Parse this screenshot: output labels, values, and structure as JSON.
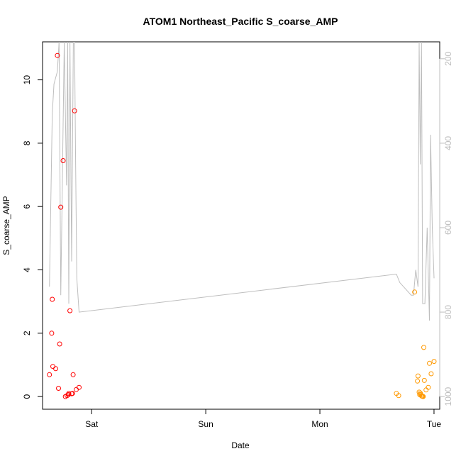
{
  "chart_data": {
    "type": "scatter",
    "title": "ATOM1 Northeast_Pacific S_coarse_AMP",
    "xlabel": "Date",
    "ylabel": "S_coarse_AMP",
    "x_ticks": [
      "Sat",
      "Sun",
      "Mon",
      "Tue"
    ],
    "x_tick_positions_days": [
      1,
      2,
      3,
      4
    ],
    "xlim_days": [
      0.57,
      4.05
    ],
    "ylim": [
      -0.4,
      11.2
    ],
    "y_ticks": [
      0,
      2,
      4,
      6,
      8,
      10
    ],
    "y2_ticks": [
      200,
      400,
      600,
      800,
      1000
    ],
    "y2lim": [
      1030,
      160
    ],
    "y2_reversed": true,
    "grid": false,
    "legend": "none",
    "colors": {
      "series1": "#ff0000",
      "series2": "#ff9900",
      "line": "#bebebe",
      "axis": "#000000",
      "axis2": "#bdbdbd"
    },
    "series": [
      {
        "color": "#ff0000",
        "marker": "open-circle",
        "x": [
          0.63,
          0.655,
          0.65,
          0.66,
          0.685,
          0.7,
          0.71,
          0.72,
          0.73,
          0.75,
          0.77,
          0.785,
          0.795,
          0.8,
          0.81,
          0.825,
          0.832,
          0.838,
          0.85,
          0.865,
          0.89
        ],
        "y": [
          0.69,
          3.07,
          2.0,
          0.95,
          0.88,
          10.77,
          0.26,
          1.66,
          5.98,
          7.45,
          0.0,
          0.03,
          0.06,
          0.1,
          2.71,
          0.09,
          0.1,
          0.69,
          9.02,
          0.22,
          0.29
        ]
      },
      {
        "color": "#ff9900",
        "marker": "open-circle",
        "x": [
          3.67,
          3.69,
          3.83,
          3.855,
          3.86,
          3.87,
          3.875,
          3.88,
          3.885,
          3.89,
          3.895,
          3.9,
          3.905,
          3.91,
          3.915,
          3.93,
          3.95,
          3.96,
          3.975,
          4.0
        ],
        "y": [
          0.1,
          0.03,
          3.3,
          0.49,
          0.65,
          0.14,
          0.06,
          0.11,
          0.06,
          0.02,
          0.01,
          0.01,
          0.0,
          1.55,
          0.51,
          0.21,
          0.29,
          1.05,
          0.72,
          1.11
        ]
      },
      {
        "color": "#bebebe",
        "type": "line",
        "axis": "right",
        "x": [
          0.63,
          0.655,
          0.67,
          0.7,
          0.715,
          0.73,
          0.76,
          0.78,
          0.79,
          0.8,
          0.81,
          0.825,
          0.84,
          0.85,
          0.86,
          0.87,
          0.89,
          3.67,
          3.7,
          3.8,
          3.82,
          3.84,
          3.86,
          3.87,
          3.88,
          3.89,
          3.9,
          3.92,
          3.94,
          3.96,
          3.97,
          3.985,
          4.0
        ],
        "y": [
          740,
          330,
          260,
          230,
          160,
          760,
          160,
          500,
          160,
          780,
          160,
          680,
          160,
          160,
          460,
          720,
          800,
          710,
          730,
          760,
          760,
          700,
          740,
          160,
          450,
          160,
          780,
          780,
          600,
          820,
          380,
          600,
          720
        ]
      }
    ]
  }
}
